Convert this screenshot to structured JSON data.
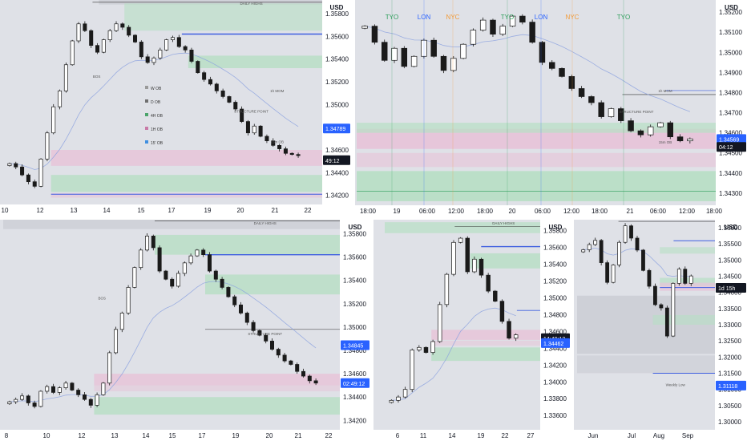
{
  "colors": {
    "panel_bg": "#dfe1e7",
    "axis_bg": "#ffffff",
    "candle": "#1a1a1a",
    "blue_line": "#3f5fe0",
    "price_blue": "#2962ff",
    "timer_black": "#131722",
    "green_zone": "#b7dfc4",
    "pink_zone": "#e7c3d8",
    "gray_zone": "#c9ccd3"
  },
  "chart_data": [
    {
      "id": "p1",
      "type": "candlestick",
      "title": "",
      "currency": "USD",
      "yticks": [
        "1.35800",
        "1.35600",
        "1.35400",
        "1.35200",
        "1.35000",
        "1.34800",
        "1.34600",
        "1.34400",
        "1.34200"
      ],
      "ylim": [
        1.3412,
        1.3592
      ],
      "xticks": [
        "10",
        "12",
        "13",
        "14",
        "15",
        "17",
        "19",
        "20",
        "21",
        "22"
      ],
      "price_badges": [
        {
          "label": "1.34789",
          "value": 1.34789,
          "style": "blue"
        },
        {
          "label": "49:12",
          "value": 1.3451,
          "style": "black"
        }
      ],
      "legend": [
        "W OB",
        "D OB",
        "4H OB",
        "1H OB",
        "15' OB"
      ],
      "annotations": [
        "DAILY HIGHS",
        "BOS",
        "STRUCTURE POINT",
        "1h MOM",
        "15m OB"
      ],
      "close": [
        1.3448,
        1.3445,
        1.3438,
        1.3432,
        1.3428,
        1.3452,
        1.3475,
        1.3498,
        1.3512,
        1.3535,
        1.3556,
        1.3571,
        1.3565,
        1.3552,
        1.3546,
        1.3557,
        1.3565,
        1.3571,
        1.3568,
        1.3561,
        1.3555,
        1.3542,
        1.3537,
        1.3541,
        1.3548,
        1.3557,
        1.3559,
        1.3551,
        1.3548,
        1.3538,
        1.3528,
        1.3522,
        1.3518,
        1.3512,
        1.3507,
        1.3502,
        1.3496,
        1.3485,
        1.3475,
        1.3481,
        1.3472,
        1.3468,
        1.3464,
        1.3461,
        1.3457,
        1.3456,
        1.3455
      ]
    },
    {
      "id": "p2",
      "type": "candlestick",
      "title": "",
      "currency": "USD",
      "yticks": [
        "1.35200",
        "1.35100",
        "1.35000",
        "1.34900",
        "1.34800",
        "1.34700",
        "1.34600",
        "1.34500",
        "1.34400",
        "1.34300"
      ],
      "ylim": [
        1.3424,
        1.3526
      ],
      "xticks": [
        "18:00",
        "19",
        "06:00",
        "12:00",
        "18:00",
        "20",
        "06:00",
        "12:00",
        "18:00",
        "21",
        "06:00",
        "12:00",
        "18:00"
      ],
      "sessions": [
        {
          "label": "TYO",
          "color": "#2e9e5b"
        },
        {
          "label": "LON",
          "color": "#2962ff"
        },
        {
          "label": "NYC",
          "color": "#f29a38"
        },
        {
          "label": "TYO",
          "color": "#2e9e5b"
        },
        {
          "label": "LON",
          "color": "#2962ff"
        },
        {
          "label": "NYC",
          "color": "#f29a38"
        },
        {
          "label": "TYO",
          "color": "#2e9e5b"
        }
      ],
      "price_badges": [
        {
          "label": "1.34569",
          "value": 1.34569,
          "style": "blue"
        },
        {
          "label": "04:12",
          "value": 1.3453,
          "style": "black"
        }
      ],
      "annotations": [
        "STRUCTURE POINT",
        "1h MOM",
        "15m OB"
      ],
      "close": [
        1.3513,
        1.3505,
        1.3496,
        1.3502,
        1.3493,
        1.3498,
        1.3506,
        1.3498,
        1.3491,
        1.3497,
        1.3504,
        1.3511,
        1.3516,
        1.3509,
        1.3513,
        1.3518,
        1.3515,
        1.3505,
        1.3495,
        1.3492,
        1.3488,
        1.3482,
        1.3478,
        1.3475,
        1.3468,
        1.3472,
        1.3466,
        1.3461,
        1.3459,
        1.3463,
        1.3465,
        1.3458,
        1.3456,
        1.3457
      ]
    },
    {
      "id": "p3",
      "type": "candlestick",
      "title": "",
      "currency": "USD",
      "yticks": [
        "1.35800",
        "1.35600",
        "1.35400",
        "1.35200",
        "1.35000",
        "1.34800",
        "1.34600",
        "1.34400",
        "1.34200"
      ],
      "ylim": [
        1.3412,
        1.3592
      ],
      "xticks": [
        "8",
        "10",
        "12",
        "13",
        "14",
        "15",
        "17",
        "19",
        "20",
        "21",
        "22"
      ],
      "price_badges": [
        {
          "label": "1.34845",
          "value": 1.34845,
          "style": "blue"
        },
        {
          "label": "02:49:12",
          "value": 1.3452,
          "style": "blue"
        }
      ],
      "annotations": [
        "DAILY HIGHS",
        "BOS",
        "STRUCTURE POINT"
      ],
      "close": [
        1.3436,
        1.3438,
        1.3441,
        1.3435,
        1.3432,
        1.3445,
        1.3449,
        1.3444,
        1.3448,
        1.3452,
        1.3446,
        1.3442,
        1.3438,
        1.3433,
        1.3442,
        1.3452,
        1.3478,
        1.3498,
        1.3512,
        1.3534,
        1.3551,
        1.3566,
        1.3578,
        1.3568,
        1.3548,
        1.3541,
        1.3535,
        1.3546,
        1.3555,
        1.3561,
        1.3566,
        1.3562,
        1.3548,
        1.3541,
        1.3534,
        1.3526,
        1.3519,
        1.3512,
        1.3504,
        1.3497,
        1.3493,
        1.3488,
        1.3481,
        1.3476,
        1.3471,
        1.3468,
        1.3462,
        1.3458,
        1.3454,
        1.3452
      ]
    },
    {
      "id": "p4",
      "type": "candlestick",
      "title": "",
      "currency": "USD",
      "yticks": [
        "1.35800",
        "1.35600",
        "1.35400",
        "1.35200",
        "1.35000",
        "1.34800",
        "1.34600",
        "1.34400",
        "1.34200",
        "1.34000",
        "1.33800",
        "1.33600"
      ],
      "ylim": [
        1.3343,
        1.3593
      ],
      "xticks": [
        "6",
        "11",
        "14",
        "19",
        "22",
        "27"
      ],
      "price_badges": [
        {
          "label": "14:49:12",
          "value": 1.3452,
          "style": "black"
        },
        {
          "label": "1.34462",
          "value": 1.34462,
          "style": "blue"
        }
      ],
      "annotations": [
        "DAILY HIGHS"
      ],
      "close": [
        1.3378,
        1.3382,
        1.3391,
        1.3438,
        1.3441,
        1.3435,
        1.3448,
        1.3492,
        1.3528,
        1.3566,
        1.3571,
        1.3531,
        1.3546,
        1.3527,
        1.3508,
        1.3496,
        1.3472,
        1.3452,
        1.3456
      ]
    },
    {
      "id": "p5",
      "type": "candlestick",
      "title": "",
      "currency": "USD",
      "yticks": [
        "1.36000",
        "1.35500",
        "1.35000",
        "1.34500",
        "1.34000",
        "1.33500",
        "1.33000",
        "1.32500",
        "1.32000",
        "1.31500",
        "1.31000",
        "1.30500",
        "1.30000"
      ],
      "ylim": [
        1.2975,
        1.3625
      ],
      "xticks": [
        "Jun",
        "Jul",
        "Aug",
        "Sep"
      ],
      "price_badges": [
        {
          "label": "1d 15h",
          "value": 1.3414,
          "style": "black"
        },
        {
          "label": "1.31118",
          "value": 1.31118,
          "style": "blue"
        }
      ],
      "annotations": [
        "Weekly Low"
      ],
      "close": [
        1.3532,
        1.3548,
        1.3561,
        1.3492,
        1.3431,
        1.3485,
        1.3555,
        1.3606,
        1.3568,
        1.3531,
        1.3468,
        1.3419,
        1.3362,
        1.3352,
        1.3265,
        1.3428,
        1.3472,
        1.3428,
        1.3451
      ]
    }
  ]
}
